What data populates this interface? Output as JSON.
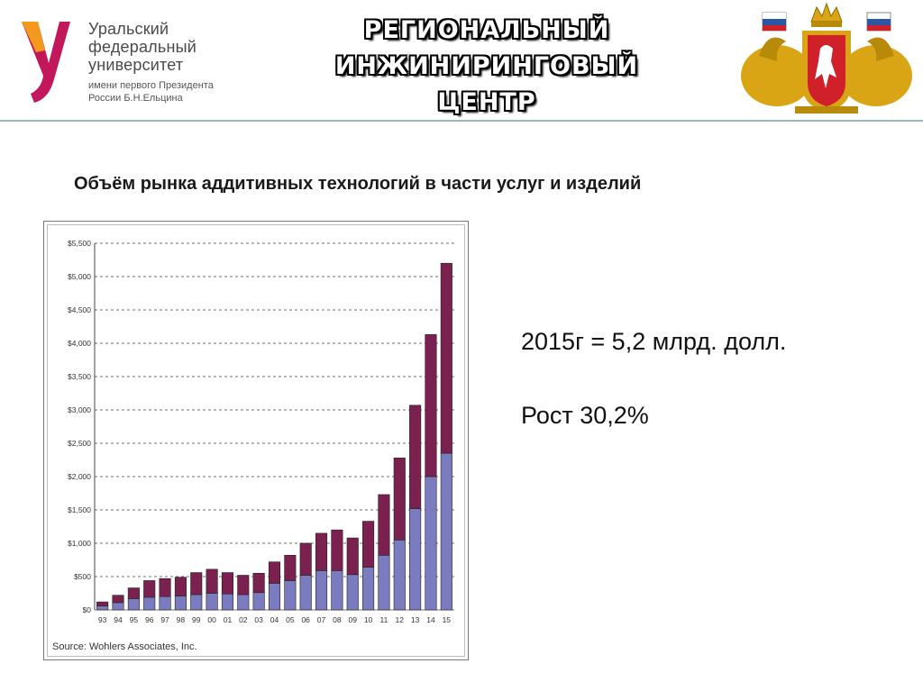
{
  "header": {
    "university_lines": [
      "Уральский",
      "федеральный",
      "университет"
    ],
    "university_sub_lines": [
      "имени первого Президента",
      "России Б.Н.Ельцина"
    ],
    "title_lines": [
      "РЕГИОНАЛЬНЫЙ",
      "ИНЖИНИРИНГОВЫЙ",
      "ЦЕНТР"
    ],
    "colors": {
      "logo_orange": "#f39a1e",
      "logo_magenta": "#c2185b",
      "coat_gold": "#d9a514",
      "coat_red": "#d0202a"
    }
  },
  "slide": {
    "title": "Объём рынка аддитивных технологий в части услуг и изделий",
    "stats": [
      "2015г = 5,2 млрд. долл.",
      "Рост 30,2%"
    ]
  },
  "chart_data": {
    "type": "bar",
    "stacked": true,
    "categories": [
      "93",
      "94",
      "95",
      "96",
      "97",
      "98",
      "99",
      "00",
      "01",
      "02",
      "03",
      "04",
      "05",
      "06",
      "07",
      "08",
      "09",
      "10",
      "11",
      "12",
      "13",
      "14",
      "15"
    ],
    "series": [
      {
        "color": "#7b7bbf",
        "values": [
          60,
          110,
          170,
          190,
          200,
          210,
          230,
          250,
          240,
          230,
          260,
          400,
          440,
          520,
          590,
          590,
          530,
          640,
          820,
          1050,
          1520,
          2000,
          2350
        ]
      },
      {
        "color": "#7a2150",
        "values": [
          60,
          110,
          160,
          250,
          270,
          280,
          330,
          360,
          320,
          290,
          290,
          320,
          380,
          480,
          560,
          610,
          550,
          690,
          910,
          1230,
          1550,
          2130,
          2850
        ]
      }
    ],
    "yticks": [
      "$0",
      "$500",
      "$1,000",
      "$1,500",
      "$2,000",
      "$2,500",
      "$3,000",
      "$3,500",
      "$4,000",
      "$4,500",
      "$5,000",
      "$5,500"
    ],
    "ylim": [
      0,
      5500
    ],
    "grid": true,
    "source": "Source: Wohlers Associates, Inc."
  }
}
